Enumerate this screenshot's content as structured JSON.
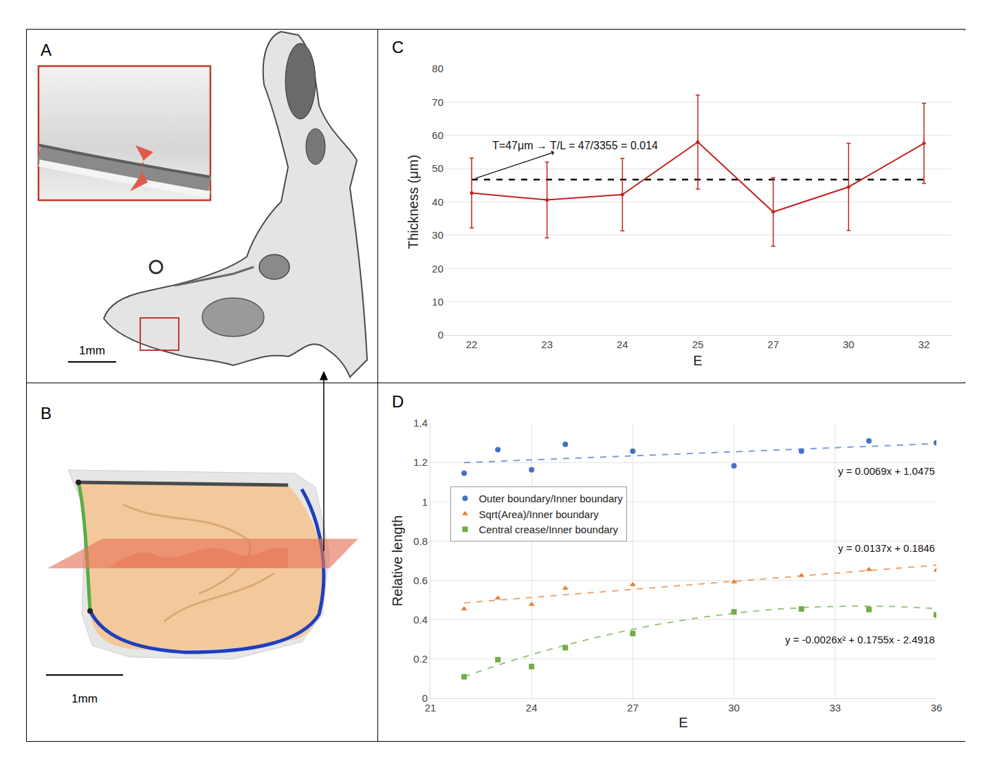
{
  "chart_data": [
    {
      "type": "line",
      "panel_label": "C",
      "categories": [
        "22",
        "23",
        "24",
        "25",
        "27",
        "30",
        "32"
      ],
      "values": [
        42.7,
        40.6,
        42.2,
        58.0,
        37.0,
        44.5,
        57.6
      ],
      "errors": [
        10.5,
        11.4,
        10.9,
        14.1,
        10.3,
        13.1,
        12.0
      ],
      "color": "#c0231e",
      "marker": "circle",
      "x_label": "E",
      "y_label": "Thickness (μm)",
      "ylim": [
        0,
        80
      ],
      "yticks": [
        0,
        10,
        20,
        30,
        40,
        50,
        60,
        70,
        80
      ],
      "grid": true,
      "mean_line": {
        "value": 46.7,
        "color": "#000000",
        "line_style": "dash"
      },
      "annotations": [
        {
          "text": "T=47μm → T/L = 47/3355 = 0.014"
        }
      ]
    },
    {
      "type": "scatter",
      "panel_label": "D",
      "x_label": "E",
      "y_label": "Relative length",
      "xlim": [
        21,
        36
      ],
      "xticks": [
        21,
        24,
        27,
        30,
        33,
        36
      ],
      "ylim": [
        0,
        1.4
      ],
      "yticks": [
        0,
        0.2,
        0.4,
        0.6,
        0.8,
        1,
        1.2,
        1.4
      ],
      "grid": true,
      "legend": "center left",
      "series": [
        {
          "name": "Outer boundary/Inner boundary",
          "color": "#4472c4",
          "marker": "circle",
          "x": [
            22,
            23,
            24,
            25,
            27,
            30,
            32,
            34,
            36
          ],
          "values": [
            1.145,
            1.265,
            1.163,
            1.292,
            1.257,
            1.183,
            1.257,
            1.31,
            1.3
          ],
          "trend": {
            "equation": "y = 0.0069x + 1.0475",
            "coefficients": [
              0.0069,
              1.0475
            ],
            "x": [
              22,
              36
            ],
            "line_style": "dash"
          }
        },
        {
          "name": "Sqrt(Area)/Inner boundary",
          "color": "#ed7d31",
          "marker": "triangle-up",
          "x": [
            22,
            23,
            24,
            25,
            27,
            30,
            32,
            34,
            36
          ],
          "values": [
            0.455,
            0.51,
            0.478,
            0.56,
            0.578,
            0.592,
            0.625,
            0.655,
            0.652
          ],
          "trend": {
            "equation": "y = 0.0137x + 0.1846",
            "coefficients": [
              0.0137,
              0.1846
            ],
            "x": [
              22,
              36
            ],
            "line_style": "dash"
          }
        },
        {
          "name": "Central crease/Inner boundary",
          "color": "#70ad47",
          "marker": "square",
          "x": [
            22,
            23,
            24,
            25,
            27,
            30,
            32,
            34,
            36
          ],
          "values": [
            0.11,
            0.197,
            0.162,
            0.258,
            0.33,
            0.44,
            0.455,
            0.452,
            0.425
          ],
          "trend": {
            "equation": "y = -0.0026x² + 0.1755x - 2.4918",
            "coefficients": [
              -0.0026,
              0.1755,
              -2.4918
            ],
            "x": [
              22,
              36
            ],
            "line_style": "dash"
          }
        }
      ]
    }
  ],
  "panels": [
    {
      "label": "A",
      "scale_bar": "1mm"
    },
    {
      "label": "B",
      "scale_bar": "1mm"
    }
  ]
}
